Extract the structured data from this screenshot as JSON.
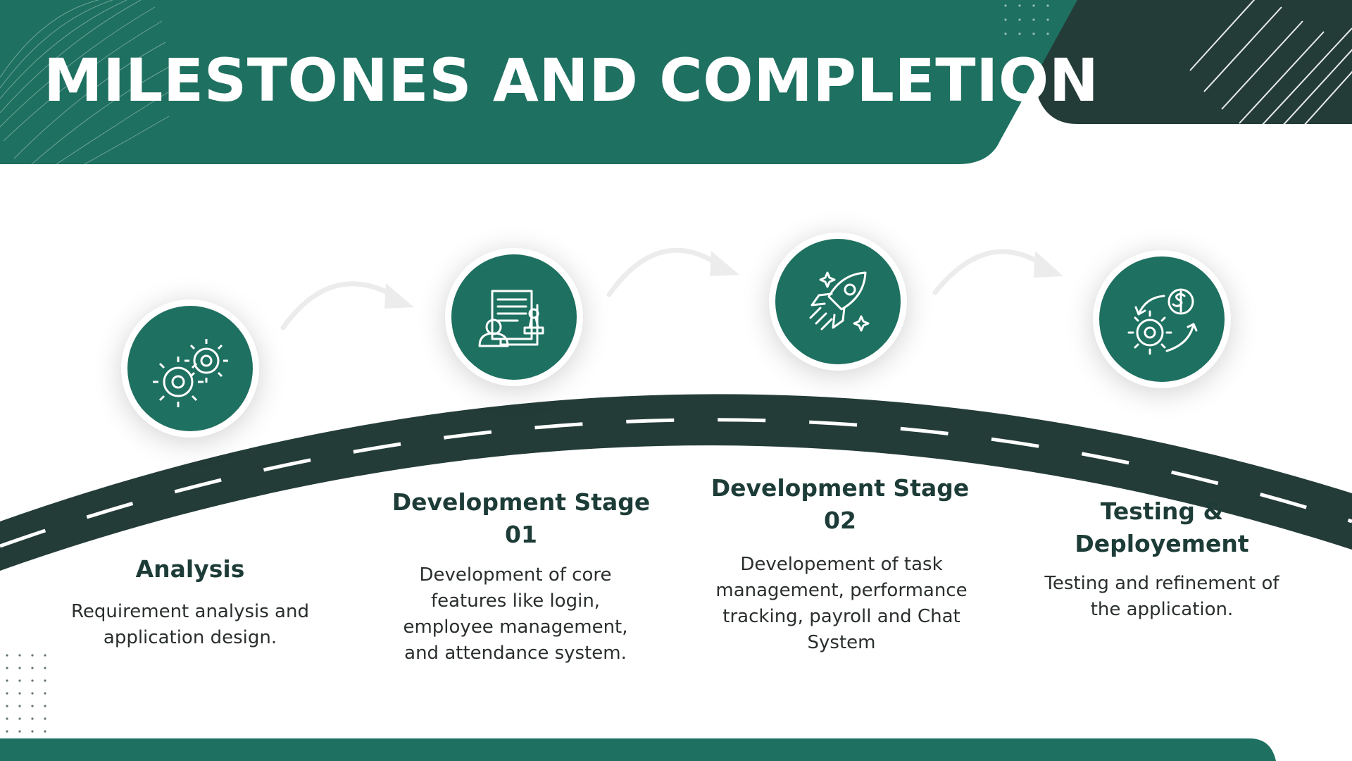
{
  "title": "MILESTONES AND COMPLETION",
  "colors": {
    "primary_green": "#1e7060",
    "dark_green": "#243c38",
    "road": "#243c38",
    "arrow": "#ececec",
    "heading_text": "#1d3c37",
    "body_text": "#2a2f2e"
  },
  "milestones": [
    {
      "icon": "gears-icon",
      "heading": "Analysis",
      "description": "Requirement analysis and application design."
    },
    {
      "icon": "documents-person-stamp-icon",
      "heading": "Development Stage 01",
      "description": "Development of core features like login, employee management, and attendance system."
    },
    {
      "icon": "rocket-icon",
      "heading": "Development Stage 02",
      "description": "Developement of task management, performance tracking, payroll and Chat System"
    },
    {
      "icon": "gear-dollar-cycle-icon",
      "heading": "Testing & Deployement",
      "description": "Testing and refinement of the application."
    }
  ]
}
